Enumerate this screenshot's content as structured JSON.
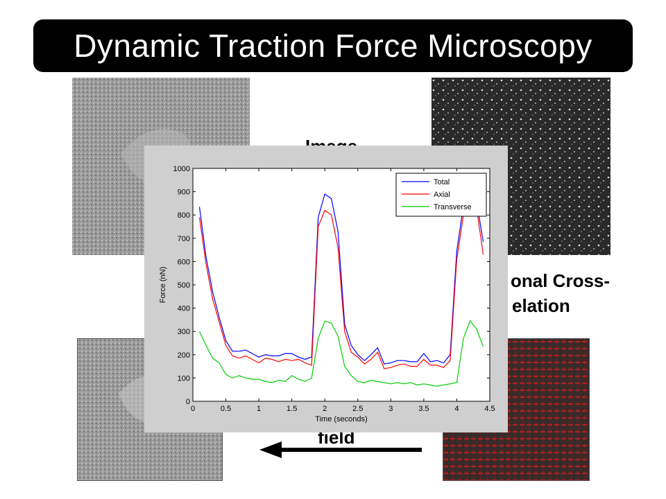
{
  "slide": {
    "title": "Dynamic Traction Force Microscopy",
    "partial_label_image": "Image",
    "partial_label_cross_1": "onal Cross-",
    "partial_label_cross_2": "elation",
    "partial_label_field": "field"
  },
  "chart_data": {
    "type": "line",
    "xlabel": "Time (seconds)",
    "ylabel": "Force (nN)",
    "xlim": [
      0,
      4.5
    ],
    "ylim": [
      0,
      1000
    ],
    "xticks": [
      "0",
      "0.5",
      "1",
      "1.5",
      "2",
      "2.5",
      "3",
      "3.5",
      "4",
      "4.5"
    ],
    "yticks": [
      "0",
      "100",
      "200",
      "300",
      "400",
      "500",
      "600",
      "700",
      "800",
      "900",
      "1000"
    ],
    "legend_position": "top-right",
    "grid": false,
    "x": [
      0.1,
      0.2,
      0.3,
      0.4,
      0.5,
      0.6,
      0.7,
      0.8,
      0.9,
      1.0,
      1.1,
      1.2,
      1.3,
      1.4,
      1.5,
      1.6,
      1.7,
      1.8,
      1.9,
      2.0,
      2.1,
      2.2,
      2.3,
      2.4,
      2.5,
      2.6,
      2.7,
      2.8,
      2.9,
      3.0,
      3.1,
      3.2,
      3.3,
      3.4,
      3.5,
      3.6,
      3.7,
      3.8,
      3.9,
      4.0,
      4.1,
      4.2,
      4.3,
      4.4
    ],
    "series": [
      {
        "name": "Total",
        "color": "#0000ff",
        "values": [
          835,
          620,
          470,
          360,
          260,
          215,
          215,
          220,
          205,
          190,
          200,
          195,
          195,
          205,
          205,
          190,
          180,
          190,
          790,
          890,
          870,
          730,
          330,
          240,
          200,
          175,
          200,
          230,
          160,
          165,
          175,
          175,
          170,
          170,
          205,
          170,
          175,
          165,
          200,
          645,
          840,
          895,
          860,
          685
        ]
      },
      {
        "name": "Axial",
        "color": "#ff0000",
        "values": [
          790,
          590,
          440,
          340,
          240,
          195,
          185,
          195,
          180,
          165,
          185,
          180,
          170,
          180,
          175,
          180,
          165,
          155,
          750,
          820,
          800,
          660,
          300,
          210,
          190,
          160,
          180,
          210,
          140,
          145,
          155,
          160,
          150,
          150,
          180,
          155,
          155,
          145,
          175,
          610,
          800,
          860,
          830,
          630
        ]
      },
      {
        "name": "Transverse",
        "color": "#00cc00",
        "values": [
          300,
          240,
          185,
          165,
          115,
          100,
          110,
          100,
          95,
          95,
          85,
          80,
          90,
          85,
          110,
          95,
          85,
          100,
          270,
          345,
          335,
          280,
          150,
          110,
          85,
          80,
          90,
          85,
          80,
          75,
          80,
          75,
          80,
          70,
          75,
          70,
          65,
          70,
          75,
          80,
          270,
          345,
          310,
          235
        ]
      }
    ]
  }
}
